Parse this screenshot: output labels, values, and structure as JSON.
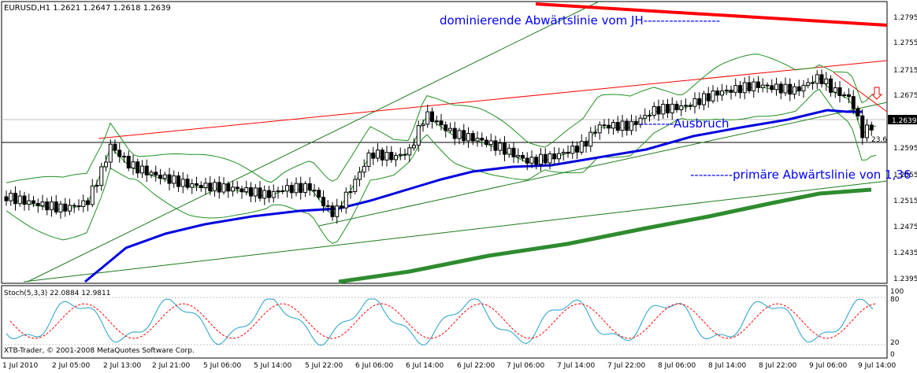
{
  "window": {
    "symbol_header": "EURUSD,H1  1.2621 1.2647 1.2618 1.2639"
  },
  "annotations": {
    "top_trendline": "dominierende Abwärtslinie vom JH------------------",
    "breakout": "--------Ausbruch",
    "primary_line": "----------primäre Abwärtslinie von 1,36",
    "fib_level": "23.6"
  },
  "price_axis": {
    "ticks": [
      "1.2795",
      "1.2755",
      "1.2715",
      "1.2675",
      "1.2635",
      "1.2595",
      "1.2555",
      "1.2515",
      "1.2475",
      "1.2435",
      "1.2395"
    ],
    "current_price": "1.2639"
  },
  "indicator": {
    "label": "Stoch(5,3,3) 22.0884 12.9811",
    "levels": [
      "100",
      "80",
      "20",
      "0"
    ],
    "copyright": "XTB-Trader, © 2001-2008 MetaQuotes Software Corp."
  },
  "time_axis": {
    "ticks": [
      "1 Jul 2010",
      "2 Jul 05:00",
      "2 Jul 13:00",
      "2 Jul 21:00",
      "5 Jul 06:00",
      "5 Jul 14:00",
      "5 Jul 22:00",
      "6 Jul 06:00",
      "6 Jul 14:00",
      "6 Jul 22:00",
      "7 Jul 06:00",
      "7 Jul 14:00",
      "7 Jul 22:00",
      "8 Jul 06:00",
      "8 Jul 14:00",
      "8 Jul 22:00",
      "9 Jul 06:00",
      "9 Jul 14:00"
    ]
  },
  "colors": {
    "candle": "#000000",
    "bollinger": "#1f8f1f",
    "ma_blue": "#0000e0",
    "ma_green": "#2e8b2e",
    "trend_red": "#ff0000",
    "annotation_blue": "#0000ff",
    "stoch_main": "#20a0c8",
    "stoch_signal": "#ff0000"
  }
}
